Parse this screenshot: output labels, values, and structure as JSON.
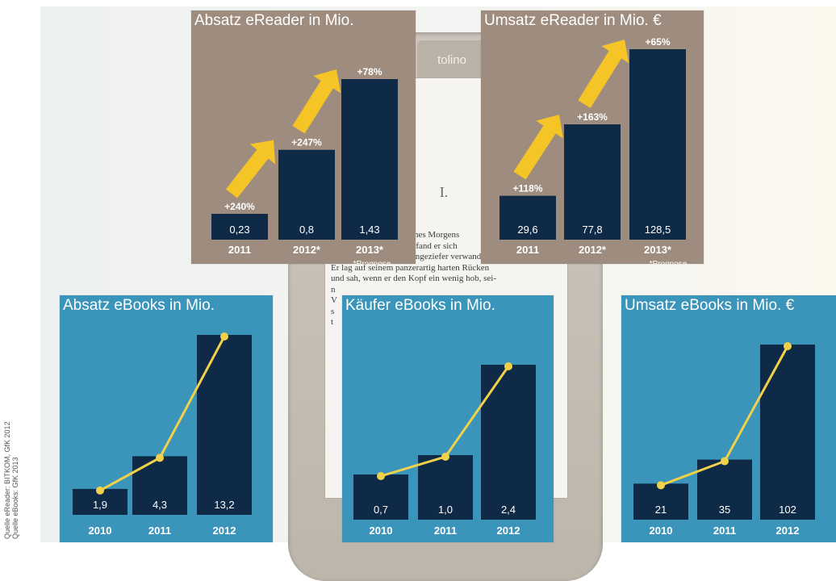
{
  "colors": {
    "brown_panel": "#9e8c7f",
    "blue_panel": "#3b94ba",
    "bar": "#0f2a46",
    "arrow": "#f5c427",
    "line": "#f2d14a"
  },
  "device": {
    "logo": "tolino",
    "chapter": "I.",
    "text_lines": [
      "eines Morgens",
      "e, fand er sich",
      "zu einem ungeheuren Ungeziefer verwandelt.",
      "Er lag auf seinem panzerartig harten Rücken",
      "und sah, wenn er den Kopf ein wenig hob, sei-",
      "n",
      "V",
      "s",
      "t"
    ]
  },
  "source": {
    "line1": "Quelle eReader: BITKOM, GfK 2012",
    "line2": "Quelle eBooks: GfK 2013"
  },
  "chart_data": [
    {
      "id": "absatz-ereader",
      "type": "bar",
      "title": "Absatz eReader in Mio.",
      "categories": [
        "2011",
        "2012*",
        "2013*"
      ],
      "values": [
        0.23,
        0.8,
        1.43
      ],
      "value_labels": [
        "0,23",
        "0,8",
        "1,43"
      ],
      "growth_labels": [
        "+240%",
        "+247%",
        "+78%"
      ],
      "footnote": "*Prognose",
      "ylim": [
        0,
        1.43
      ],
      "arrows": true,
      "line_overlay": false
    },
    {
      "id": "umsatz-ereader",
      "type": "bar",
      "title": "Umsatz eReader in Mio. €",
      "categories": [
        "2011",
        "2012*",
        "2013*"
      ],
      "values": [
        29.6,
        77.8,
        128.5
      ],
      "value_labels": [
        "29,6",
        "77,8",
        "128,5"
      ],
      "growth_labels": [
        "+118%",
        "+163%",
        "+65%"
      ],
      "footnote": "*Prognose",
      "ylim": [
        0,
        128.5
      ],
      "arrows": true,
      "line_overlay": false
    },
    {
      "id": "absatz-ebooks",
      "type": "bar",
      "title": "Absatz eBooks in Mio.",
      "categories": [
        "2010",
        "2011",
        "2012"
      ],
      "values": [
        1.9,
        4.3,
        13.2
      ],
      "value_labels": [
        "1,9",
        "4,3",
        "13,2"
      ],
      "ylim": [
        0,
        13.2
      ],
      "arrows": false,
      "line_overlay": true
    },
    {
      "id": "kaeufer-ebooks",
      "type": "bar",
      "title": "Käufer eBooks in Mio.",
      "categories": [
        "2010",
        "2011",
        "2012"
      ],
      "values": [
        0.7,
        1.0,
        2.4
      ],
      "value_labels": [
        "0,7",
        "1,0",
        "2,4"
      ],
      "ylim": [
        0,
        2.4
      ],
      "arrows": false,
      "line_overlay": true
    },
    {
      "id": "umsatz-ebooks",
      "type": "bar",
      "title": "Umsatz eBooks in Mio. €",
      "categories": [
        "2010",
        "2011",
        "2012"
      ],
      "values": [
        21,
        35,
        102
      ],
      "value_labels": [
        "21",
        "35",
        "102"
      ],
      "ylim": [
        0,
        102
      ],
      "arrows": false,
      "line_overlay": true
    }
  ]
}
